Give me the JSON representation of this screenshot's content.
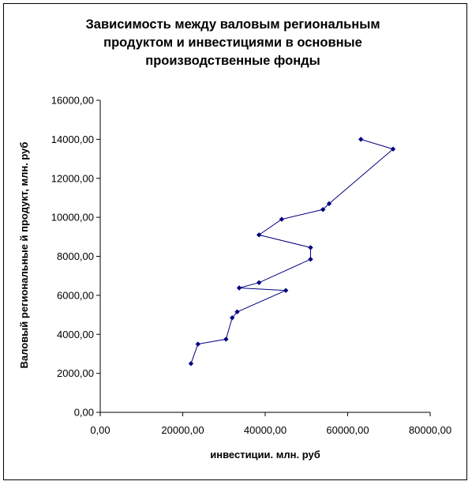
{
  "chart_data": {
    "type": "line",
    "title_lines": [
      "Зависимость между валовым региональным",
      "продуктом и инвестициями в основные",
      "производственные фонды"
    ],
    "xlabel": "инвестиции. млн. руб",
    "ylabel": "Валовый региональные й продукт, млн. руб",
    "xlim": [
      0,
      80000
    ],
    "ylim": [
      0,
      16000
    ],
    "x_ticks": [
      0,
      20000,
      40000,
      60000,
      80000
    ],
    "y_ticks": [
      0,
      2000,
      4000,
      6000,
      8000,
      10000,
      12000,
      14000,
      16000
    ],
    "x_tick_labels": [
      "0,00",
      "20000,00",
      "40000,00",
      "60000,00",
      "80000,00"
    ],
    "y_tick_labels": [
      "0,00",
      "2000,00",
      "4000,00",
      "6000,00",
      "8000,00",
      "10000,00",
      "12000,00",
      "14000,00",
      "16000,00"
    ],
    "grid": false,
    "legend": "none",
    "series": [
      {
        "color": "#000080",
        "marker": "diamond",
        "points": [
          [
            22000,
            2500
          ],
          [
            23700,
            3500
          ],
          [
            30500,
            3750
          ],
          [
            32000,
            4850
          ],
          [
            33200,
            5150
          ],
          [
            45000,
            6250
          ],
          [
            33700,
            6380
          ],
          [
            38500,
            6650
          ],
          [
            51000,
            7850
          ],
          [
            51000,
            8450
          ],
          [
            38500,
            9100
          ],
          [
            44000,
            9900
          ],
          [
            54000,
            10400
          ],
          [
            55500,
            10700
          ],
          [
            71000,
            13500
          ],
          [
            63200,
            14000
          ]
        ]
      }
    ]
  }
}
